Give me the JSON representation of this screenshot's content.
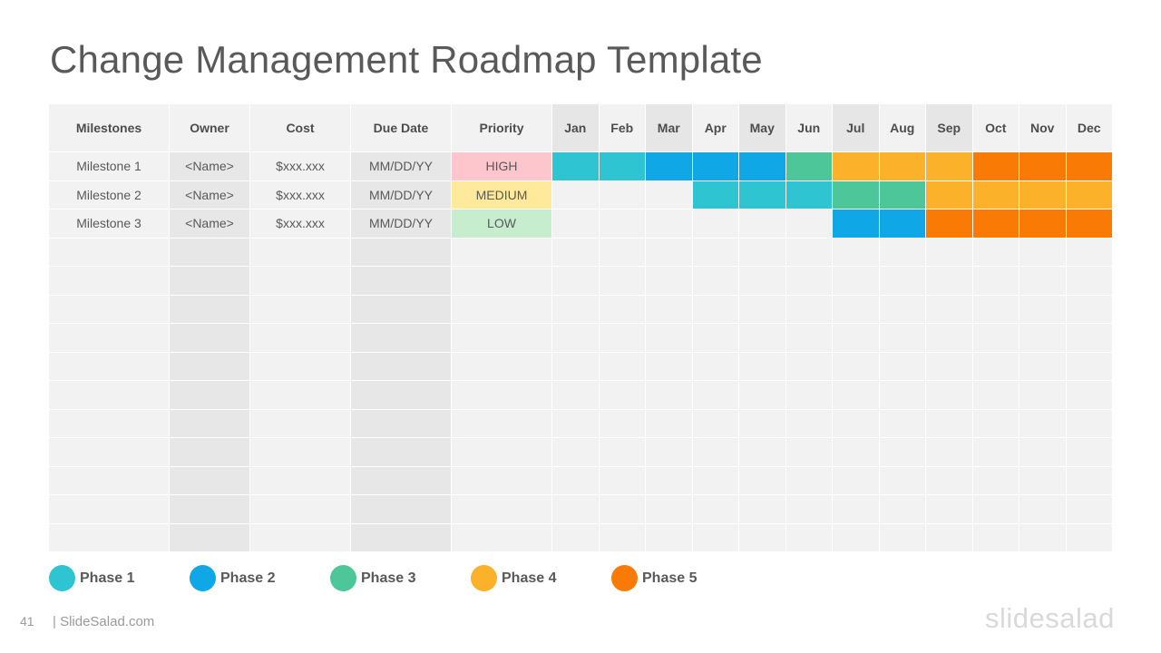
{
  "title": "Change Management Roadmap Template",
  "columns": [
    "Milestones",
    "Owner",
    "Cost",
    "Due Date",
    "Priority"
  ],
  "months": [
    "Jan",
    "Feb",
    "Mar",
    "Apr",
    "May",
    "Jun",
    "Jul",
    "Aug",
    "Sep",
    "Oct",
    "Nov",
    "Dec"
  ],
  "phase_colors": {
    "1": "#2ec4d2",
    "2": "#0fa7e6",
    "3": "#4dc79a",
    "4": "#fbb12a",
    "5": "#f97b06"
  },
  "priority_colors": {
    "HIGH": "#fcc6cc",
    "MEDIUM": "#ffe99b",
    "LOW": "#c5edce"
  },
  "rows": [
    {
      "milestone": "Milestone 1",
      "owner": "<Name>",
      "cost": "$xxx.xxx",
      "due_date": "MM/DD/YY",
      "priority": "HIGH",
      "phases": [
        1,
        1,
        2,
        2,
        2,
        3,
        4,
        4,
        4,
        5,
        5,
        5
      ]
    },
    {
      "milestone": "Milestone 2",
      "owner": "<Name>",
      "cost": "$xxx.xxx",
      "due_date": "MM/DD/YY",
      "priority": "MEDIUM",
      "phases": [
        0,
        0,
        0,
        1,
        1,
        1,
        3,
        3,
        4,
        4,
        4,
        4
      ]
    },
    {
      "milestone": "Milestone 3",
      "owner": "<Name>",
      "cost": "$xxx.xxx",
      "due_date": "MM/DD/YY",
      "priority": "LOW",
      "phases": [
        0,
        0,
        0,
        0,
        0,
        0,
        2,
        2,
        5,
        5,
        5,
        5
      ]
    }
  ],
  "empty_rows": 11,
  "legend": [
    {
      "label": "Phase 1",
      "color": "#2ec4d2"
    },
    {
      "label": "Phase 2",
      "color": "#0fa7e6"
    },
    {
      "label": "Phase 3",
      "color": "#4dc79a"
    },
    {
      "label": "Phase 4",
      "color": "#fbb12a"
    },
    {
      "label": "Phase 5",
      "color": "#f97b06"
    }
  ],
  "footer": {
    "page_number": "41",
    "site": "| SlideSalad.com",
    "brand": "slidesalad"
  }
}
